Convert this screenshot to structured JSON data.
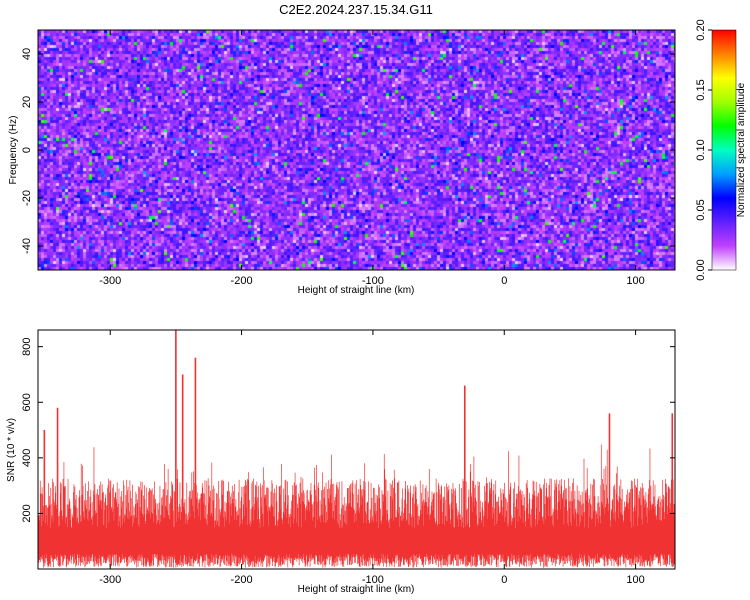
{
  "title": "C2E2.2024.237.15.34.G11",
  "chart_data": [
    {
      "type": "heatmap",
      "xlabel": "Height of straight line (km)",
      "ylabel": "Frequency (Hz)",
      "xlim": [
        -355,
        130
      ],
      "ylim": [
        -50,
        50
      ],
      "xticks": [
        -300,
        -200,
        -100,
        0,
        100
      ],
      "yticks": [
        -40,
        -20,
        0,
        20,
        40
      ],
      "colorbar": {
        "label": "Normalized spectral amplitude",
        "range": [
          0.0,
          0.2
        ],
        "ticks": [
          "0.00",
          "0.05",
          "0.10",
          "0.15",
          "0.20"
        ],
        "colors": [
          "#ffffff",
          "#c040ff",
          "#6020ff",
          "#0000ff",
          "#00a0ff",
          "#00ffc0",
          "#00ff00",
          "#a0ff00",
          "#ffff00",
          "#ff8000",
          "#ff0000"
        ]
      },
      "background_level": 0.03,
      "hotspot_level": 0.11
    },
    {
      "type": "area",
      "xlabel": "Height of straight line (km)",
      "ylabel": "SNR (10 * v/v)",
      "xlim": [
        -355,
        130
      ],
      "ylim": [
        0,
        860
      ],
      "xticks": [
        -300,
        -200,
        -100,
        0,
        100
      ],
      "yticks": [
        200,
        400,
        600,
        800
      ],
      "color": "#f03232",
      "baseline_mean": 200,
      "spikes": [
        {
          "x": -350,
          "y": 500
        },
        {
          "x": -340,
          "y": 580
        },
        {
          "x": -250,
          "y": 860
        },
        {
          "x": -245,
          "y": 700
        },
        {
          "x": -235,
          "y": 760
        },
        {
          "x": -30,
          "y": 660
        },
        {
          "x": 80,
          "y": 560
        },
        {
          "x": 128,
          "y": 560
        }
      ]
    }
  ]
}
